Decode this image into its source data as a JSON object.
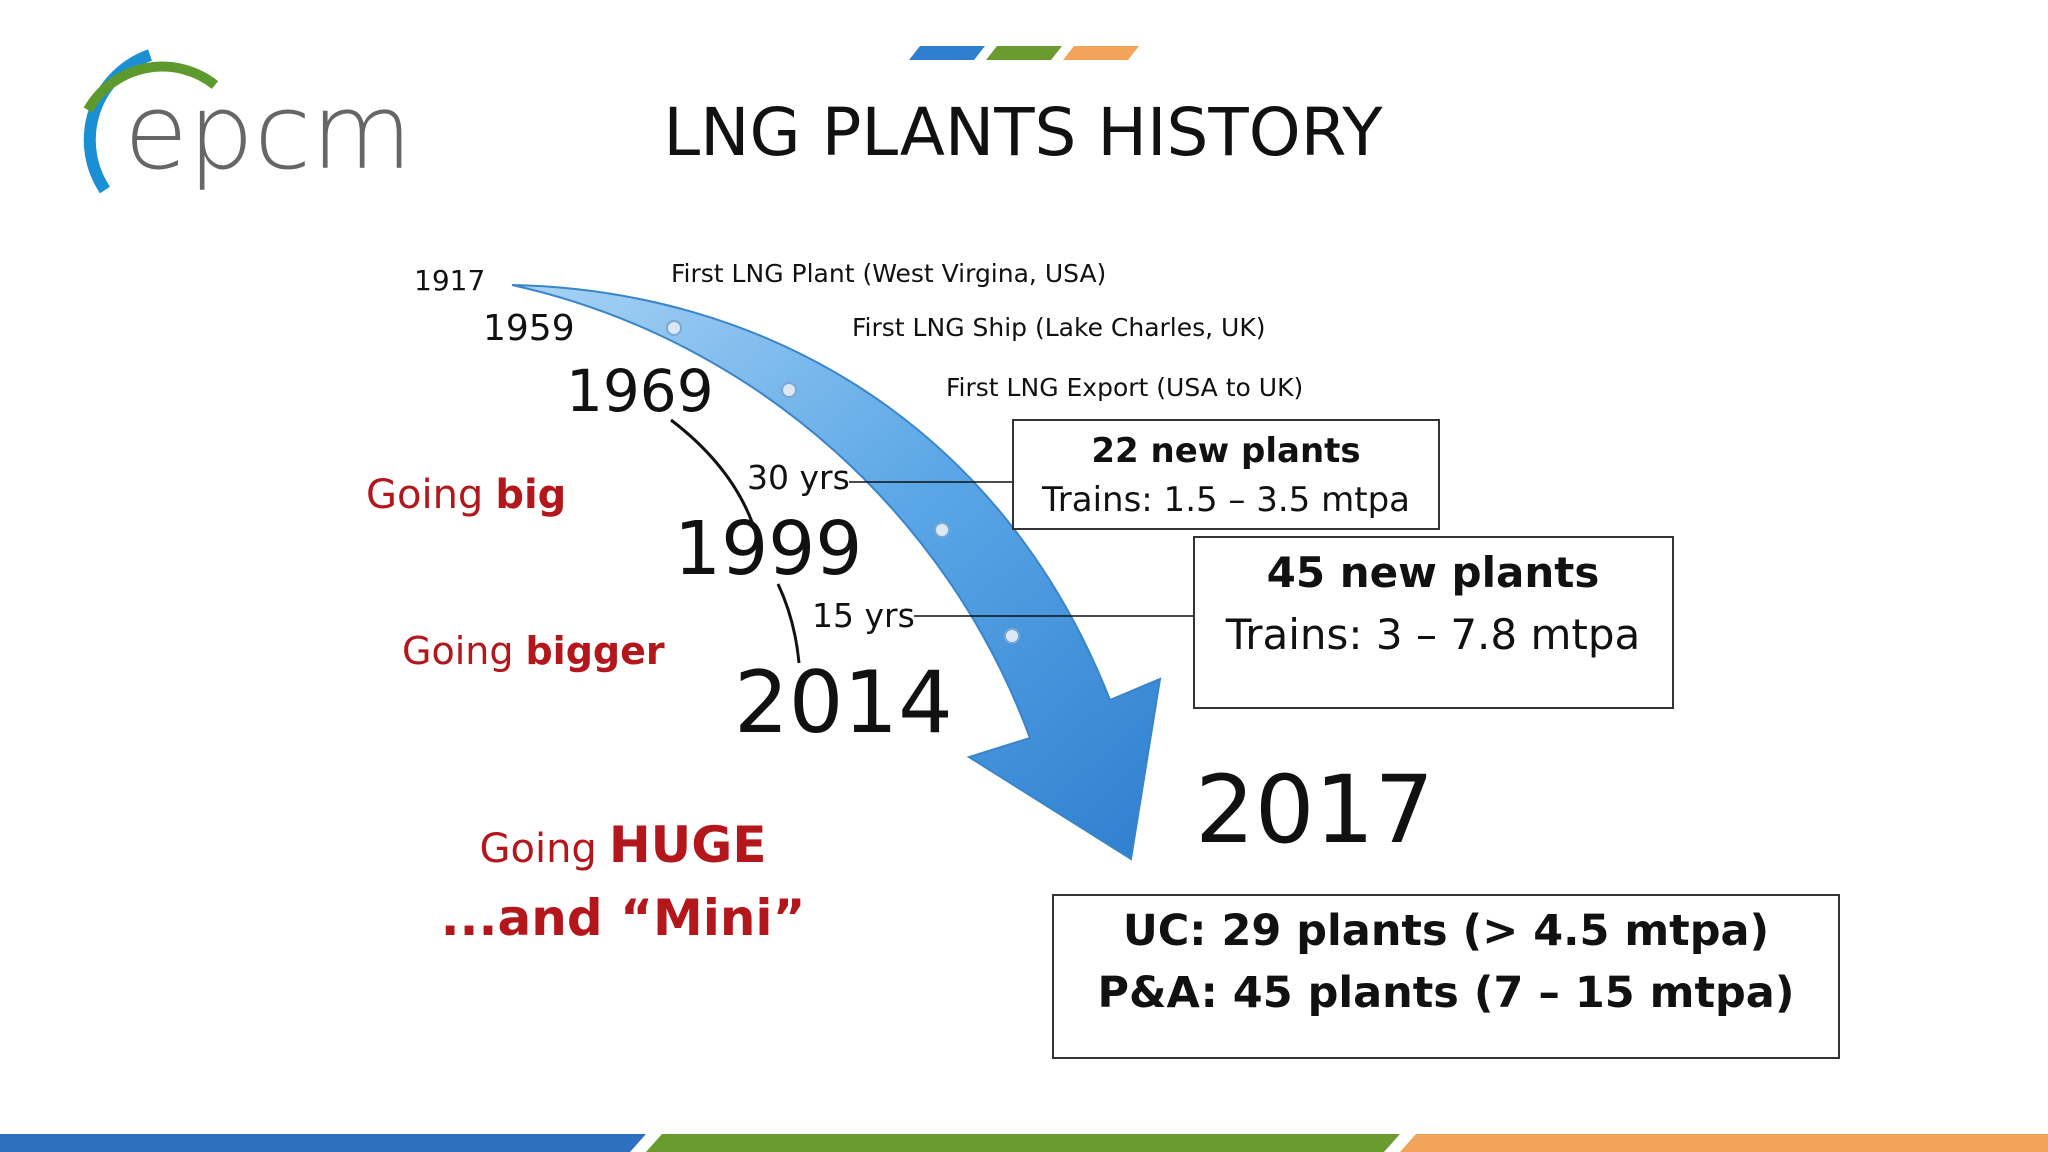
{
  "header": {
    "logo": "epcm",
    "title": "LNG PLANTS HISTORY"
  },
  "timeline": {
    "years": [
      "1917",
      "1959",
      "1969",
      "1999",
      "2014",
      "2017"
    ],
    "events": [
      "First LNG Plant (West Virgina, USA)",
      "First LNG Ship (Lake Charles, UK)",
      "First LNG Export (USA to UK)"
    ],
    "intervals": [
      "30 yrs",
      "15 yrs"
    ]
  },
  "phases": [
    {
      "plain": "Going",
      "bold": "big"
    },
    {
      "plain": "Going",
      "bold": "bigger"
    },
    {
      "plain": "Going",
      "bold": "HUGE",
      "line2": "...and “Mini”"
    }
  ],
  "boxes": [
    {
      "title": "22 new plants",
      "detail": "Trains: 1.5 – 3.5 mtpa"
    },
    {
      "title": "45 new plants",
      "detail": "Trains: 3 – 7.8 mtpa"
    },
    {
      "line1": "UC: 29 plants (> 4.5 mtpa)",
      "line2": "P&A: 45 plants (7 – 15 mtpa)"
    }
  ]
}
